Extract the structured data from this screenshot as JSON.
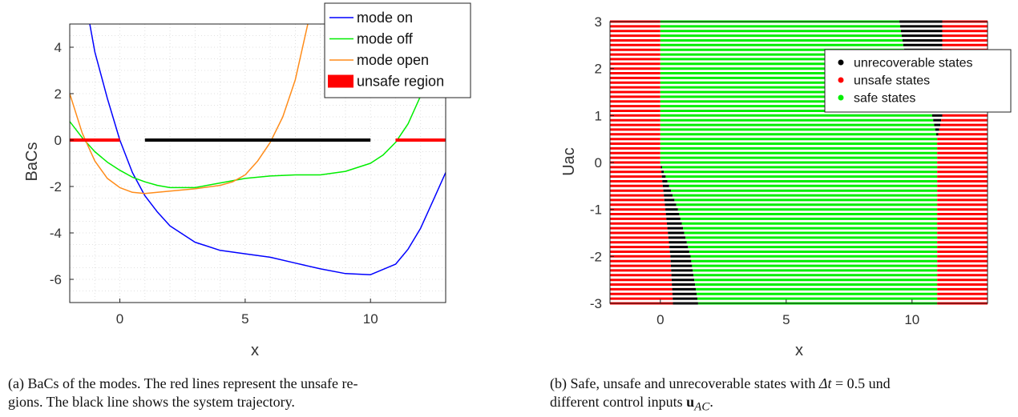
{
  "chart_data": [
    {
      "type": "line",
      "xlabel": "x",
      "ylabel": "BaCs",
      "xlim": [
        -2,
        13
      ],
      "ylim": [
        -7,
        5
      ],
      "xticks": [
        "0",
        "5",
        "10"
      ],
      "yticks": [
        "4",
        "2",
        "0",
        "-2",
        "-4",
        "-6"
      ],
      "grid": "minor dotted",
      "legend_placement": "top-right",
      "series": [
        {
          "name": "mode on",
          "color": "#0000ff",
          "x": [
            -1.2,
            -1,
            -0.5,
            0,
            0.5,
            1,
            1.5,
            2,
            3,
            4,
            5,
            6,
            7,
            8,
            9,
            10,
            11,
            11.5,
            12,
            12.5,
            13
          ],
          "y": [
            5.0,
            3.8,
            1.8,
            0.0,
            -1.4,
            -2.4,
            -3.1,
            -3.7,
            -4.4,
            -4.75,
            -4.9,
            -5.05,
            -5.3,
            -5.55,
            -5.75,
            -5.8,
            -5.35,
            -4.7,
            -3.8,
            -2.6,
            -1.4
          ]
        },
        {
          "name": "mode off",
          "color": "#00ee00",
          "x": [
            -2,
            -1.5,
            -1,
            -0.5,
            0,
            0.5,
            1,
            1.5,
            2,
            3,
            4,
            5,
            6,
            7,
            8,
            9,
            10,
            10.5,
            11,
            11.5,
            12,
            12.5,
            13
          ],
          "y": [
            0.8,
            0.1,
            -0.5,
            -0.95,
            -1.3,
            -1.6,
            -1.8,
            -1.95,
            -2.05,
            -2.05,
            -1.85,
            -1.65,
            -1.55,
            -1.5,
            -1.5,
            -1.35,
            -1.0,
            -0.65,
            -0.1,
            0.7,
            1.9,
            3.5,
            5.0
          ]
        },
        {
          "name": "mode open",
          "color": "#ff8c1a",
          "x": [
            -2,
            -1.5,
            -1,
            -0.5,
            0,
            0.5,
            1,
            1.5,
            2,
            3,
            4,
            4.5,
            5,
            5.5,
            6,
            6.5,
            7,
            7.5
          ],
          "y": [
            2.0,
            0.3,
            -0.9,
            -1.65,
            -2.05,
            -2.25,
            -2.3,
            -2.25,
            -2.2,
            -2.1,
            -1.95,
            -1.8,
            -1.5,
            -0.9,
            -0.1,
            1.0,
            2.6,
            5.0
          ]
        }
      ],
      "segments": [
        {
          "name": "unsafe region",
          "color": "#ff0000",
          "x0": -2,
          "x1": 0,
          "y": 0
        },
        {
          "name": "unsafe region",
          "color": "#ff0000",
          "x0": 11,
          "x1": 13,
          "y": 0
        },
        {
          "name": "system trajectory",
          "color": "#000000",
          "x0": 1,
          "x1": 10,
          "y": 0
        }
      ]
    },
    {
      "type": "scatter",
      "xlabel": "x",
      "ylabel": "Uac",
      "xlim": [
        -2,
        13
      ],
      "ylim": [
        -3,
        3
      ],
      "xticks": [
        "0",
        "5",
        "10"
      ],
      "yticks": [
        "3",
        "2",
        "1",
        "0",
        "-1",
        "-2",
        "-3"
      ],
      "legend_placement": "top-right",
      "row_step": 0.1,
      "series": [
        {
          "name": "unrecoverable states",
          "color": "#000000"
        },
        {
          "name": "unsafe states",
          "color": "#ff0000"
        },
        {
          "name": "safe states",
          "color": "#00ee00"
        }
      ],
      "regions": {
        "safe_left_boundary": {
          "u": [
            -3,
            -2,
            -1,
            0,
            3
          ],
          "x": [
            0.5,
            0.4,
            0.2,
            0.0,
            0.0
          ]
        },
        "unrecoverable_left_end": {
          "u": [
            -3,
            -2,
            -1,
            0,
            3
          ],
          "x": [
            1.5,
            1.2,
            0.7,
            0.0,
            0.0
          ]
        },
        "safe_right_boundary": {
          "u": [
            -3,
            0,
            1,
            3
          ],
          "x": [
            11,
            11,
            11,
            10.5
          ]
        },
        "unrecoverable_right_start": {
          "u": [
            -3,
            0,
            0.5,
            1,
            2,
            3
          ],
          "x": [
            11,
            11,
            11,
            10.8,
            9.8,
            9.5
          ]
        },
        "unsafe_right_start": {
          "u": [
            -3,
            0.5,
            1,
            3
          ],
          "x": [
            11,
            11,
            11.2,
            11.2
          ]
        }
      }
    }
  ],
  "captions": {
    "a_main": "(a) BaCs of the modes. The red lines represent the unsafe re-",
    "a_line2": "gions. The black line shows the system trajectory.",
    "b_pre": "(b) Safe, unsafe and unrecoverable states with ",
    "b_delta": "Δt",
    "b_mid": " = 0.5 und",
    "b_line2": "different control inputs ",
    "b_u": "u",
    "b_sub": "AC",
    "b_end": "."
  }
}
